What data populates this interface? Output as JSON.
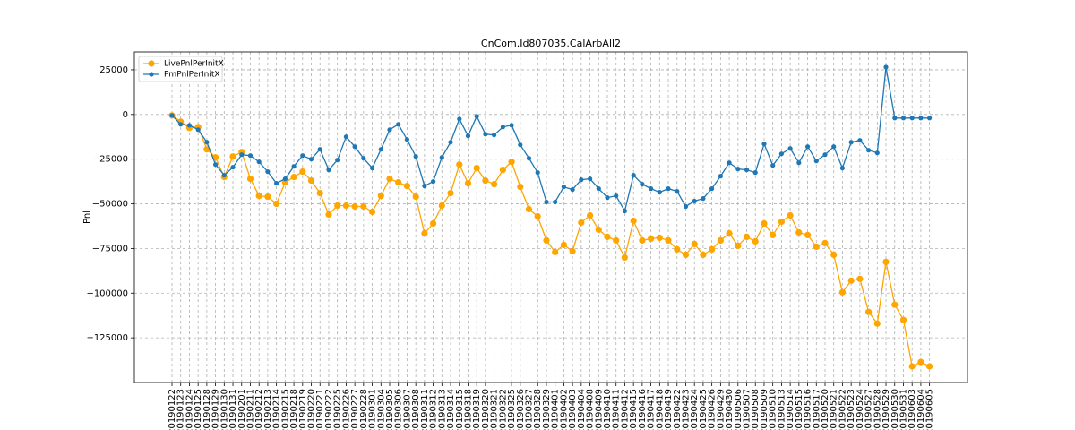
{
  "chart_data": {
    "type": "line",
    "title": "CnCom.Id807035.CalArbAll2",
    "xlabel": "",
    "ylabel": "Pnl",
    "ylim": [
      -150000,
      35000
    ],
    "yticks": [
      25000,
      0,
      -25000,
      -50000,
      -75000,
      -100000,
      -125000
    ],
    "ytick_labels": [
      "25000",
      "0",
      "−25000",
      "−50000",
      "−75000",
      "−100000",
      "−125000"
    ],
    "grid": true,
    "grid_style": "dashed",
    "legend_position": "upper left",
    "categories": [
      "20190122",
      "20190123",
      "20190124",
      "20190125",
      "20190128",
      "20190129",
      "20190130",
      "20190131",
      "20190201",
      "20190211",
      "20190212",
      "20190213",
      "20190214",
      "20190215",
      "20190218",
      "20190219",
      "20190220",
      "20190221",
      "20190222",
      "20190225",
      "20190226",
      "20190227",
      "20190228",
      "20190301",
      "20190304",
      "20190305",
      "20190306",
      "20190307",
      "20190308",
      "20190311",
      "20190312",
      "20190313",
      "20190314",
      "20190315",
      "20190318",
      "20190319",
      "20190320",
      "20190321",
      "20190322",
      "20190325",
      "20190326",
      "20190327",
      "20190328",
      "20190329",
      "20190401",
      "20190402",
      "20190403",
      "20190404",
      "20190408",
      "20190409",
      "20190410",
      "20190411",
      "20190412",
      "20190415",
      "20190416",
      "20190417",
      "20190418",
      "20190419",
      "20190422",
      "20190423",
      "20190424",
      "20190425",
      "20190426",
      "20190429",
      "20190430",
      "20190506",
      "20190507",
      "20190508",
      "20190509",
      "20190510",
      "20190513",
      "20190514",
      "20190515",
      "20190516",
      "20190517",
      "20190520",
      "20190521",
      "20190522",
      "20190523",
      "20190524",
      "20190527",
      "20190528",
      "20190529",
      "20190530",
      "20190531",
      "20190603",
      "20190604",
      "20190605"
    ],
    "series": [
      {
        "name": "LivePnlPerInitX",
        "color": "#ffa500",
        "marker": "circle",
        "values": [
          -500,
          -4000,
          -7500,
          -7000,
          -19500,
          -24000,
          -35000,
          -23500,
          -21000,
          -36000,
          -45500,
          -46000,
          -50000,
          -38000,
          -35000,
          -32000,
          -37000,
          -44000,
          -56000,
          -51000,
          -51000,
          -51500,
          -51500,
          -54500,
          -45500,
          -36000,
          -38000,
          -40000,
          -46000,
          -66500,
          -61000,
          -51000,
          -44000,
          -28000,
          -38500,
          -30000,
          -37000,
          -39000,
          -31000,
          -26500,
          -40500,
          -53000,
          -57000,
          -70500,
          -77000,
          -73000,
          -76500,
          -60500,
          -56500,
          -64500,
          -68500,
          -70500,
          -80000,
          -59500,
          -70500,
          -69500,
          -69000,
          -70500,
          -75500,
          -78500,
          -72500,
          -78500,
          -75500,
          -70500,
          -66500,
          -73500,
          -68500,
          -71000,
          -61000,
          -67500,
          -60000,
          -56500,
          -66000,
          -67500,
          -74000,
          -72000,
          -78500,
          -99500,
          -93000,
          -92000,
          -110500,
          -117000,
          -82500,
          -106500,
          -115000,
          -141000,
          -138500,
          -141000
        ]
      },
      {
        "name": "PmPnlPerInitX",
        "color": "#1f77b4",
        "marker": "circle",
        "values": [
          -500,
          -5500,
          -6000,
          -8500,
          -15500,
          -28000,
          -34000,
          -29500,
          -22500,
          -23000,
          -26500,
          -32000,
          -38500,
          -36000,
          -29000,
          -23000,
          -25000,
          -19500,
          -31000,
          -25500,
          -12500,
          -18000,
          -24500,
          -30000,
          -19500,
          -8500,
          -5500,
          -14000,
          -23500,
          -40000,
          -37500,
          -24000,
          -15500,
          -2500,
          -12000,
          -1000,
          -11000,
          -11500,
          -7000,
          -6000,
          -17000,
          -24500,
          -32500,
          -49000,
          -49000,
          -40500,
          -42000,
          -36500,
          -36000,
          -41500,
          -46500,
          -45500,
          -54000,
          -34000,
          -39000,
          -41500,
          -43500,
          -41500,
          -43000,
          -51500,
          -48500,
          -47000,
          -41500,
          -34500,
          -27000,
          -30500,
          -31000,
          -32500,
          -16500,
          -28500,
          -22000,
          -19000,
          -27000,
          -18000,
          -26000,
          -22500,
          -18000,
          -30000,
          -15500,
          -14500,
          -20000,
          -21500,
          26500,
          -2000,
          -2000,
          -2000,
          -2000,
          -2000
        ]
      }
    ]
  }
}
